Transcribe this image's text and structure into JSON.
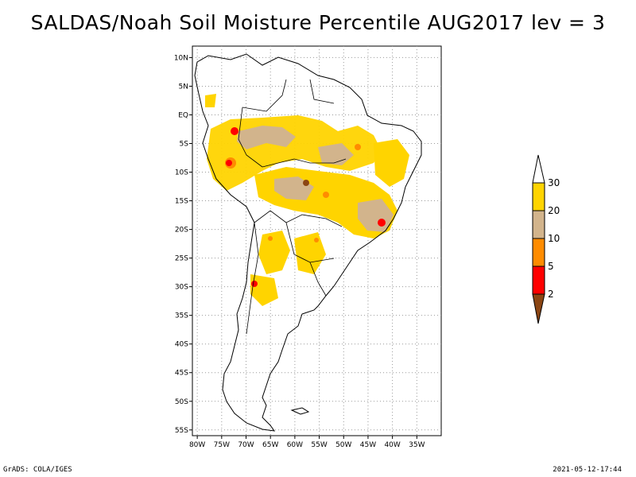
{
  "title": "SALDAS/Noah Soil Moisture Percentile AUG2017 lev = 3",
  "credit": "GrADS: COLA/IGES",
  "timestamp": "2021-05-12-17:44",
  "map": {
    "lon_range": [
      -81,
      -30
    ],
    "lat_range": [
      -56,
      12
    ],
    "grid": true,
    "lat_ticks": [
      "10N",
      "5N",
      "EQ",
      "5S",
      "10S",
      "15S",
      "20S",
      "25S",
      "30S",
      "35S",
      "40S",
      "45S",
      "50S",
      "55S"
    ],
    "lon_ticks": [
      "80W",
      "75W",
      "70W",
      "65W",
      "60W",
      "55W",
      "50W",
      "45W",
      "40W",
      "35W"
    ]
  },
  "legend": {
    "placement": "right",
    "labels": [
      "30",
      "20",
      "10",
      "5",
      "2"
    ],
    "colors": {
      "above_30": "#ffffff",
      "20_30": "#ffd400",
      "10_20": "#d2b48c",
      "5_10": "#ff8c00",
      "2_5": "#ff0000",
      "below_2": "#8b4513"
    }
  }
}
